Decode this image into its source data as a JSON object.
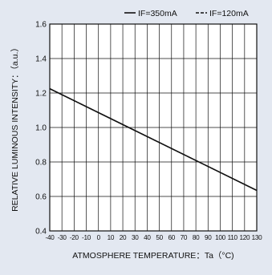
{
  "chart_data": {
    "type": "line",
    "xlabel": "ATMOSPHERE TEMPERATURE：Ta（°C)",
    "ylabel": "RELATIVE LUMINOUS INTENSITY：（a.u.）",
    "xlim": [
      -40,
      130
    ],
    "ylim": [
      0.4,
      1.6
    ],
    "x_ticks": [
      "-40",
      "-30",
      "-20",
      "-10",
      "0",
      "10",
      "20",
      "30",
      "40",
      "50",
      "60",
      "70",
      "80",
      "90",
      "100",
      "110",
      "120",
      "130"
    ],
    "y_ticks": [
      "0.4",
      "0.6",
      "0.8",
      "1.0",
      "1.2",
      "1.4",
      "1.6"
    ],
    "grid": true,
    "legend_position": "top-right",
    "series": [
      {
        "name": "IF=350mA",
        "style": "solid",
        "color": "#111111",
        "x": [
          -40,
          130
        ],
        "y": [
          1.225,
          0.635
        ]
      },
      {
        "name": "IF=120mA",
        "style": "dashed",
        "color": "#111111",
        "x": [
          -40,
          130
        ],
        "y": [
          1.225,
          0.635
        ]
      }
    ]
  }
}
